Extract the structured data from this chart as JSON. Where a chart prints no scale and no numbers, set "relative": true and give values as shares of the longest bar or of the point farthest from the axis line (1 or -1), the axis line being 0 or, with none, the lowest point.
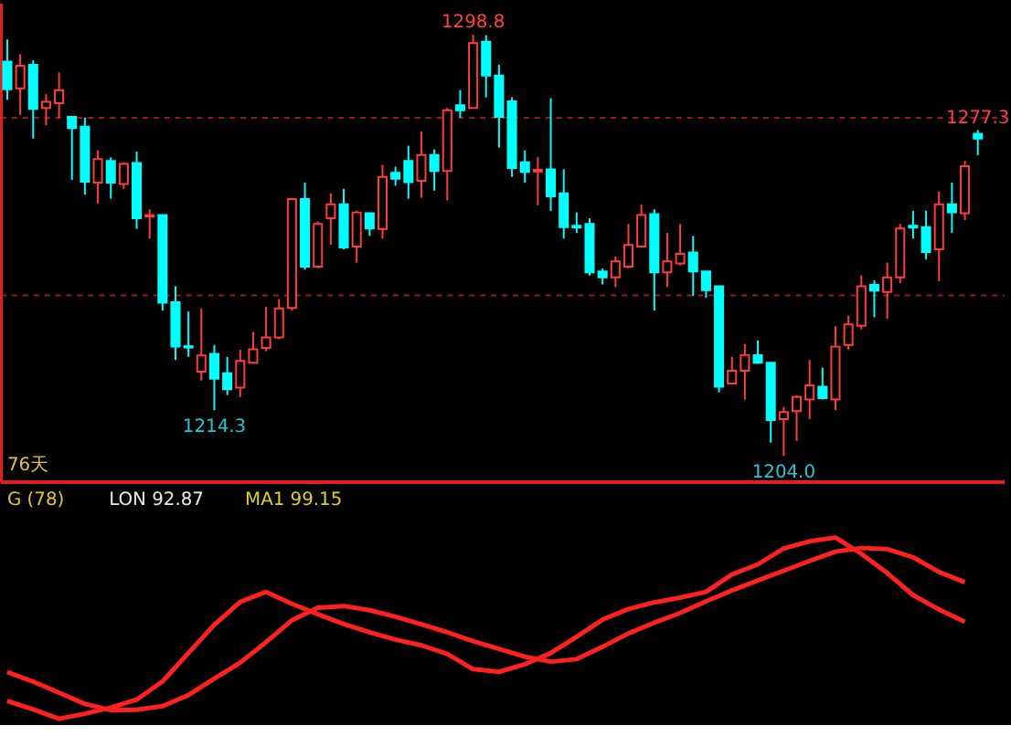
{
  "chart_data": [
    {
      "type": "candlestick",
      "categories": [
        null,
        null,
        null,
        null,
        null,
        null,
        null,
        null,
        null,
        null,
        null,
        null,
        null,
        null,
        null,
        null,
        null,
        null,
        null,
        null,
        null,
        null,
        null,
        null,
        null,
        null,
        null,
        null,
        null,
        null,
        null,
        null,
        null,
        null,
        null,
        null,
        null,
        null,
        null,
        null,
        null,
        null,
        null,
        null,
        null,
        null,
        null,
        null,
        null,
        null,
        null,
        null,
        null,
        null,
        null,
        null,
        null,
        null,
        null,
        null,
        null,
        null,
        null,
        null,
        null,
        null,
        null,
        null,
        null,
        null,
        null,
        null,
        null,
        null,
        null,
        null
      ],
      "ohlc": [
        [
          1292.7,
          1297.7,
          1284.1,
          1286.5
        ],
        [
          1286.7,
          1294.4,
          1280.7,
          1291.8
        ],
        [
          1292.0,
          1293.0,
          1275.4,
          1282.1
        ],
        [
          1282.3,
          1285.4,
          1278.4,
          1283.7
        ],
        [
          1283.4,
          1290.3,
          1280.1,
          1286.3
        ],
        [
          1280.3,
          1280.3,
          1266.1,
          1277.8
        ],
        [
          1278.1,
          1280.1,
          1262.8,
          1265.7
        ],
        [
          1265.5,
          1272.8,
          1260.8,
          1270.8
        ],
        [
          1270.4,
          1271.2,
          1261.9,
          1265.5
        ],
        [
          1265.2,
          1270.1,
          1264.1,
          1269.7
        ],
        [
          1269.9,
          1272.5,
          1255.1,
          1257.5
        ],
        [
          1257.9,
          1259.5,
          1252.9,
          1258.2
        ],
        [
          1258.2,
          1258.2,
          1236.7,
          1238.5
        ],
        [
          1238.6,
          1242.2,
          1225.6,
          1228.6
        ],
        [
          1228.7,
          1236.5,
          1226.3,
          1228.4
        ],
        [
          1223.0,
          1237.2,
          1221.0,
          1226.6
        ],
        [
          1227.0,
          1229.0,
          1214.3,
          1221.4
        ],
        [
          1222.6,
          1226.3,
          1217.7,
          1219.0
        ],
        [
          1219.4,
          1227.9,
          1217.3,
          1225.4
        ],
        [
          1225.0,
          1231.9,
          1224.7,
          1228.0
        ],
        [
          1228.3,
          1237.6,
          1227.6,
          1230.7
        ],
        [
          1230.7,
          1239.3,
          1230.3,
          1237.2
        ],
        [
          1237.3,
          1261.8,
          1236.7,
          1261.8
        ],
        [
          1261.8,
          1265.5,
          1245.9,
          1246.6
        ],
        [
          1246.6,
          1256.8,
          1246.2,
          1256.2
        ],
        [
          1257.5,
          1263.1,
          1251.5,
          1260.6
        ],
        [
          1260.6,
          1264.1,
          1250.5,
          1250.9
        ],
        [
          1251.1,
          1259.2,
          1247.5,
          1258.8
        ],
        [
          1258.6,
          1258.6,
          1253.5,
          1255.2
        ],
        [
          1255.1,
          1269.5,
          1252.9,
          1266.8
        ],
        [
          1267.7,
          1269.1,
          1264.8,
          1266.4
        ],
        [
          1270.4,
          1273.8,
          1261.9,
          1265.6
        ],
        [
          1265.9,
          1277.0,
          1262.1,
          1271.7
        ],
        [
          1271.7,
          1273.0,
          1263.7,
          1268.1
        ],
        [
          1268.1,
          1282.3,
          1261.5,
          1281.8
        ],
        [
          1282.9,
          1286.3,
          1280.1,
          1281.8
        ],
        [
          1282.3,
          1298.8,
          1282.3,
          1296.9
        ],
        [
          1297.2,
          1298.7,
          1284.7,
          1289.6
        ],
        [
          1289.6,
          1292.0,
          1273.4,
          1280.3
        ],
        [
          1283.8,
          1284.7,
          1266.8,
          1268.8
        ],
        [
          1270.1,
          1272.8,
          1265.5,
          1267.9
        ],
        [
          1268.0,
          1271.2,
          1260.4,
          1268.4
        ],
        [
          1268.5,
          1284.5,
          1259.1,
          1262.4
        ],
        [
          1263.1,
          1268.5,
          1252.9,
          1255.5
        ],
        [
          1255.8,
          1258.8,
          1254.2,
          1255.4
        ],
        [
          1256.2,
          1257.5,
          1244.6,
          1245.3
        ],
        [
          1245.5,
          1246.2,
          1242.6,
          1244.2
        ],
        [
          1244.2,
          1248.9,
          1242.0,
          1247.8
        ],
        [
          1246.6,
          1256.2,
          1246.2,
          1251.5
        ],
        [
          1251.1,
          1260.6,
          1250.9,
          1258.2
        ],
        [
          1258.4,
          1259.5,
          1236.7,
          1245.3
        ],
        [
          1245.3,
          1254.2,
          1242.0,
          1247.8
        ],
        [
          1247.3,
          1256.2,
          1246.9,
          1249.5
        ],
        [
          1249.8,
          1253.5,
          1240.0,
          1245.5
        ],
        [
          1245.5,
          1245.5,
          1239.6,
          1241.3
        ],
        [
          1242.2,
          1242.2,
          1218.3,
          1219.6
        ],
        [
          1220.3,
          1226.3,
          1220.3,
          1223.2
        ],
        [
          1223.2,
          1229.2,
          1216.7,
          1226.7
        ],
        [
          1226.7,
          1230.0,
          1224.7,
          1225.0
        ],
        [
          1225.0,
          1225.0,
          1207.0,
          1212.1
        ],
        [
          1212.3,
          1215.0,
          1204.0,
          1213.9
        ],
        [
          1214.1,
          1217.7,
          1207.4,
          1217.3
        ],
        [
          1216.7,
          1225.6,
          1212.3,
          1219.9
        ],
        [
          1219.6,
          1223.9,
          1216.7,
          1217.0
        ],
        [
          1216.7,
          1233.2,
          1214.3,
          1228.6
        ],
        [
          1229.0,
          1235.6,
          1227.9,
          1233.6
        ],
        [
          1233.3,
          1244.6,
          1232.5,
          1242.2
        ],
        [
          1242.5,
          1243.5,
          1235.2,
          1241.2
        ],
        [
          1240.9,
          1247.5,
          1234.9,
          1244.2
        ],
        [
          1244.2,
          1256.2,
          1242.9,
          1255.2
        ],
        [
          1255.8,
          1259.2,
          1252.9,
          1255.4
        ],
        [
          1255.5,
          1259.2,
          1248.2,
          1249.9
        ],
        [
          1250.5,
          1263.5,
          1243.3,
          1260.6
        ],
        [
          1260.6,
          1265.5,
          1254.2,
          1258.8
        ],
        [
          1258.6,
          1270.4,
          1257.1,
          1269.2
        ],
        [
          1276.5,
          1277.3,
          1271.7,
          1275.4
        ]
      ],
      "colors": [
        "#00ffff",
        "#ff3c3c",
        "#00ffff",
        "#ff3c3c",
        "#ff3c3c",
        "#00ffff",
        "#00ffff",
        "#ff3c3c",
        "#00ffff",
        "#ff3c3c",
        "#00ffff",
        "#ff3c3c",
        "#00ffff",
        "#00ffff",
        "#00ffff",
        "#ff3c3c",
        "#00ffff",
        "#00ffff",
        "#ff3c3c",
        "#ff3c3c",
        "#ff3c3c",
        "#ff3c3c",
        "#ff3c3c",
        "#00ffff",
        "#ff3c3c",
        "#ff3c3c",
        "#00ffff",
        "#ff3c3c",
        "#00ffff",
        "#ff3c3c",
        "#00ffff",
        "#00ffff",
        "#ff3c3c",
        "#00ffff",
        "#ff3c3c",
        "#00ffff",
        "#ff3c3c",
        "#00ffff",
        "#00ffff",
        "#00ffff",
        "#00ffff",
        "#ff3c3c",
        "#00ffff",
        "#00ffff",
        "#00ffff",
        "#00ffff",
        "#00ffff",
        "#ff3c3c",
        "#ff3c3c",
        "#ff3c3c",
        "#00ffff",
        "#ff3c3c",
        "#ff3c3c",
        "#00ffff",
        "#00ffff",
        "#00ffff",
        "#ff3c3c",
        "#ff3c3c",
        "#00ffff",
        "#00ffff",
        "#ff3c3c",
        "#ff3c3c",
        "#ff3c3c",
        "#00ffff",
        "#ff3c3c",
        "#ff3c3c",
        "#ff3c3c",
        "#00ffff",
        "#ff3c3c",
        "#ff3c3c",
        "#00ffff",
        "#00ffff",
        "#ff3c3c",
        "#00ffff",
        "#ff3c3c",
        "#00ffff"
      ],
      "yticks": [
        {
          "value": 1280.5,
          "label": null
        },
        {
          "value": 1240.2,
          "label": null
        }
      ],
      "grid": "y",
      "tick_labels": false,
      "annotations": [
        {
          "text": "1298.8",
          "y": 1298.8
        },
        {
          "text": "1214.3",
          "y": 1214.3
        },
        {
          "text": "1204.0",
          "y": 1204.0
        },
        {
          "text": "1277.3",
          "y": 1277.3
        },
        "76天"
      ]
    },
    {
      "type": "line",
      "relative": true,
      "title": "G (78)",
      "tick_labels": false,
      "annotations": [
        "LON 92.87",
        "MA1 99.15"
      ],
      "categories": [
        null,
        null,
        null,
        null,
        null,
        null,
        null,
        null,
        null,
        null,
        null,
        null,
        null,
        null,
        null,
        null,
        null,
        null,
        null,
        null,
        null,
        null,
        null,
        null,
        null,
        null,
        null,
        null,
        null,
        null,
        null,
        null,
        null,
        null,
        null,
        null,
        null,
        null
      ],
      "series": [
        {
          "color": "#ff2020",
          "values": [
            0.099,
            0.052,
            0,
            0.028,
            0.062,
            0.106,
            0.206,
            0.363,
            0.519,
            0.645,
            0.7,
            0.634,
            0.577,
            0.523,
            0.478,
            0.437,
            0.405,
            0.358,
            0.274,
            0.259,
            0.301,
            0.363,
            0.452,
            0.547,
            0.606,
            0.642,
            0.668,
            0.7,
            0.796,
            0.852,
            0.939,
            0.979,
            1.0,
            0.91,
            0.804,
            0.682,
            0.603,
            0.535
          ]
        },
        {
          "color": "#ff2020",
          "values": [
            0.258,
            0.205,
            0.144,
            0.082,
            0.048,
            0.05,
            0.07,
            0.131,
            0.222,
            0.31,
            0.423,
            0.544,
            0.613,
            0.622,
            0.599,
            0.563,
            0.522,
            0.478,
            0.428,
            0.385,
            0.343,
            0.315,
            0.329,
            0.397,
            0.471,
            0.53,
            0.584,
            0.648,
            0.708,
            0.763,
            0.817,
            0.871,
            0.922,
            0.942,
            0.936,
            0.891,
            0.81,
            0.753
          ]
        }
      ]
    }
  ]
}
